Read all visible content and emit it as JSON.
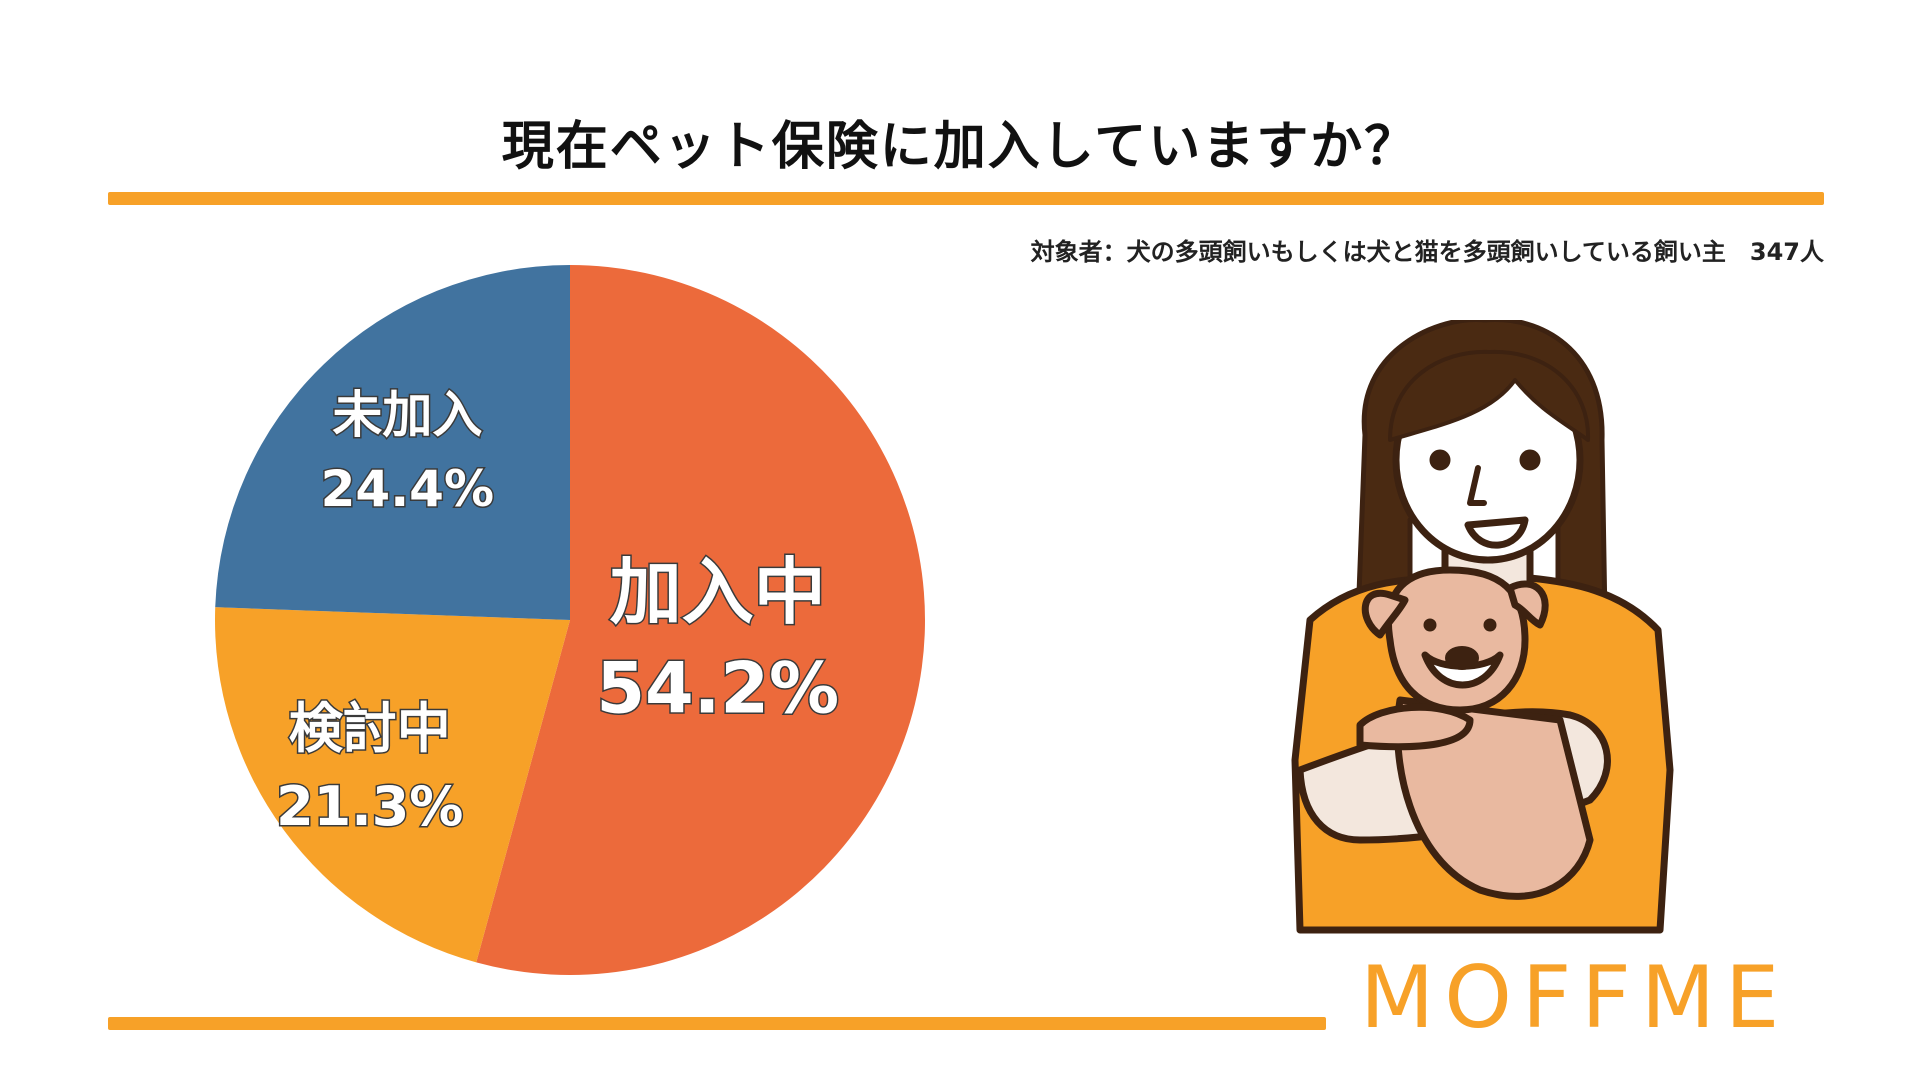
{
  "title": "現在ペット保険に加入していますか？",
  "subtitle": "対象者：犬の多頭飼いもしくは犬と猫を多頭飼いしている飼い主　347人",
  "brand": "MOFFME",
  "colors": {
    "accent": "#F7A128",
    "joined": "#EC6A3B",
    "considering": "#F7A128",
    "not_joined": "#41739F",
    "outline": "#3D2211",
    "hair": "#4A2A12",
    "skin": "#F3E7DD",
    "dog_fur": "#E9B9A0"
  },
  "chart_data": {
    "type": "pie",
    "title": "現在ペット保険に加入していますか？",
    "slices": [
      {
        "label": "加入中",
        "value": 54.2,
        "value_text": "54.2%",
        "color": "#EC6A3B"
      },
      {
        "label": "検討中",
        "value": 21.3,
        "value_text": "21.3%",
        "color": "#F7A128"
      },
      {
        "label": "未加入",
        "value": 24.4,
        "value_text": "24.4%",
        "color": "#41739F"
      }
    ],
    "start": "top",
    "direction": "clockwise",
    "legend": "none"
  },
  "illustration": {
    "icons": [
      "woman-icon",
      "dog-icon"
    ]
  }
}
